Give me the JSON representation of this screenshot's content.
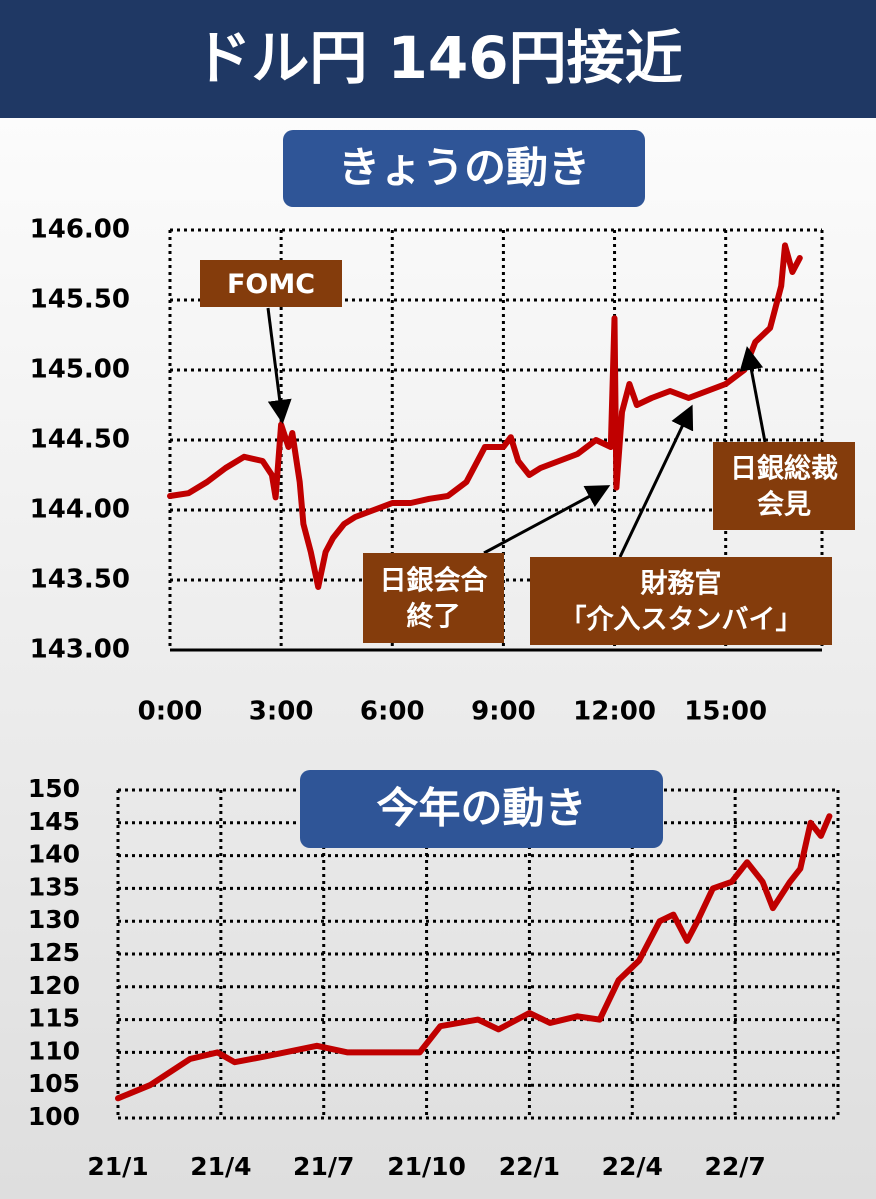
{
  "title": "ドル円 146円接近",
  "chart_data": [
    {
      "type": "line",
      "title": "きょうの動き",
      "color": "#c00000",
      "grid": true,
      "x": [
        0,
        0.5,
        1,
        1.5,
        2,
        2.5,
        2.75,
        2.85,
        3,
        3.2,
        3.3,
        3.5,
        3.6,
        3.8,
        4,
        4.2,
        4.4,
        4.7,
        5,
        5.5,
        6,
        6.5,
        7,
        7.5,
        8,
        8.3,
        8.5,
        9,
        9.2,
        9.4,
        9.7,
        10,
        10.5,
        11,
        11.5,
        11.9,
        12,
        12.05,
        12.2,
        12.4,
        12.6,
        13,
        13.5,
        14,
        14.5,
        15,
        15.5,
        15.8,
        16.2,
        16.5,
        16.6,
        16.8,
        17
      ],
      "values": [
        144.1,
        144.12,
        144.2,
        144.3,
        144.38,
        144.35,
        144.25,
        144.09,
        144.61,
        144.45,
        144.55,
        144.2,
        143.9,
        143.7,
        143.45,
        143.7,
        143.8,
        143.9,
        143.95,
        144.0,
        144.05,
        144.05,
        144.08,
        144.1,
        144.2,
        144.35,
        144.45,
        144.45,
        144.52,
        144.35,
        144.25,
        144.3,
        144.35,
        144.4,
        144.5,
        144.45,
        145.37,
        144.16,
        144.7,
        144.9,
        144.75,
        144.8,
        144.85,
        144.8,
        144.85,
        144.9,
        145.0,
        145.2,
        145.3,
        145.6,
        145.89,
        145.7,
        145.8
      ],
      "xlim": [
        0,
        17.6
      ],
      "xticks": [
        {
          "value": 0,
          "label": "0:00"
        },
        {
          "value": 3,
          "label": "3:00"
        },
        {
          "value": 6,
          "label": "6:00"
        },
        {
          "value": 9,
          "label": "9:00"
        },
        {
          "value": 12,
          "label": "12:00"
        },
        {
          "value": 15,
          "label": "15:00"
        }
      ],
      "ylim": [
        143,
        146
      ],
      "yticks": [
        {
          "value": 143,
          "label": "143.00"
        },
        {
          "value": 143.5,
          "label": "143.50"
        },
        {
          "value": 144,
          "label": "144.00"
        },
        {
          "value": 144.5,
          "label": "144.50"
        },
        {
          "value": 145,
          "label": "145.00"
        },
        {
          "value": 145.5,
          "label": "145.50"
        },
        {
          "value": 146,
          "label": "146.00"
        }
      ],
      "annotations": [
        {
          "text": [
            "FOMC"
          ]
        },
        {
          "text": [
            "日銀会合",
            "終了"
          ]
        },
        {
          "text": [
            "財務官",
            "「介入スタンバイ」"
          ]
        },
        {
          "text": [
            "日銀総裁",
            "会見"
          ]
        }
      ]
    },
    {
      "type": "line",
      "title": "今年の動き",
      "color": "#c00000",
      "grid": true,
      "x": [
        0,
        0.93,
        2.1,
        2.9,
        3.4,
        4.4,
        5.8,
        6.7,
        8.2,
        8.8,
        9.4,
        10.5,
        11.1,
        12,
        12.6,
        13.4,
        14.05,
        14.6,
        15.2,
        15.8,
        16.2,
        16.6,
        16.9,
        17.35,
        17.9,
        18.35,
        18.8,
        19.1,
        19.6,
        19.9,
        20.2,
        20.5,
        20.75
      ],
      "values": [
        103,
        105,
        109,
        110,
        108.5,
        109.5,
        111,
        110,
        110,
        110,
        114,
        115,
        113.5,
        116,
        114.5,
        115.5,
        115,
        121,
        124,
        130,
        131,
        127,
        130,
        135,
        136,
        139,
        136,
        132,
        136,
        138,
        145,
        143,
        146
      ],
      "xlim": [
        0,
        21
      ],
      "xticks": [
        {
          "value": 0,
          "label": "21/1"
        },
        {
          "value": 3,
          "label": "21/4"
        },
        {
          "value": 6,
          "label": "21/7"
        },
        {
          "value": 9,
          "label": "21/10"
        },
        {
          "value": 12,
          "label": "22/1"
        },
        {
          "value": 15,
          "label": "22/4"
        },
        {
          "value": 18,
          "label": "22/7"
        }
      ],
      "ylim": [
        100,
        150
      ],
      "yticks": [
        100,
        105,
        110,
        115,
        120,
        125,
        130,
        135,
        140,
        145,
        150
      ]
    }
  ]
}
